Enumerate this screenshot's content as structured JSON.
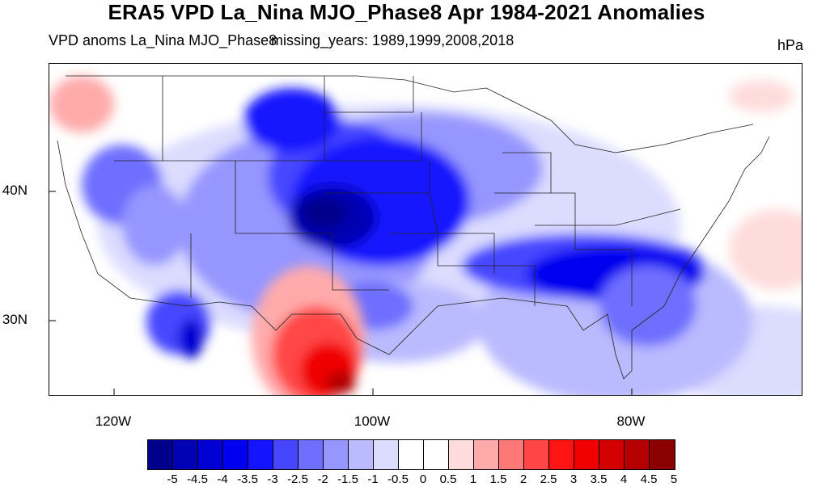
{
  "title": "ERA5 VPD La_Nina MJO_Phase8 Apr 1984-2021 Anomalies",
  "subtitle_left": "VPD anoms La_Nina MJO_Phase8",
  "subtitle_center": "missing_years: 1989,1999,2008,2018",
  "units": "hPa",
  "lat_labels": [
    "40N",
    "30N"
  ],
  "lon_labels": [
    "120W",
    "100W",
    "80W"
  ],
  "colorbar": {
    "colors": [
      "#00008b",
      "#0000b4",
      "#0000d2",
      "#0000f0",
      "#1414ff",
      "#4646ff",
      "#6e6eff",
      "#9696ff",
      "#babaff",
      "#dcdcff",
      "#ffffff",
      "#ffffff",
      "#ffdcdc",
      "#ffaaaa",
      "#ff7878",
      "#ff4646",
      "#ff1414",
      "#f00000",
      "#d20000",
      "#b40000",
      "#8b0000"
    ],
    "labels": [
      "-5",
      "-4.5",
      "-4",
      "-3.5",
      "-3",
      "-2.5",
      "-2",
      "-1.5",
      "-1",
      "-0.5",
      "0",
      "0.5",
      "1",
      "1.5",
      "2",
      "2.5",
      "3",
      "3.5",
      "4",
      "4.5",
      "5"
    ]
  }
}
